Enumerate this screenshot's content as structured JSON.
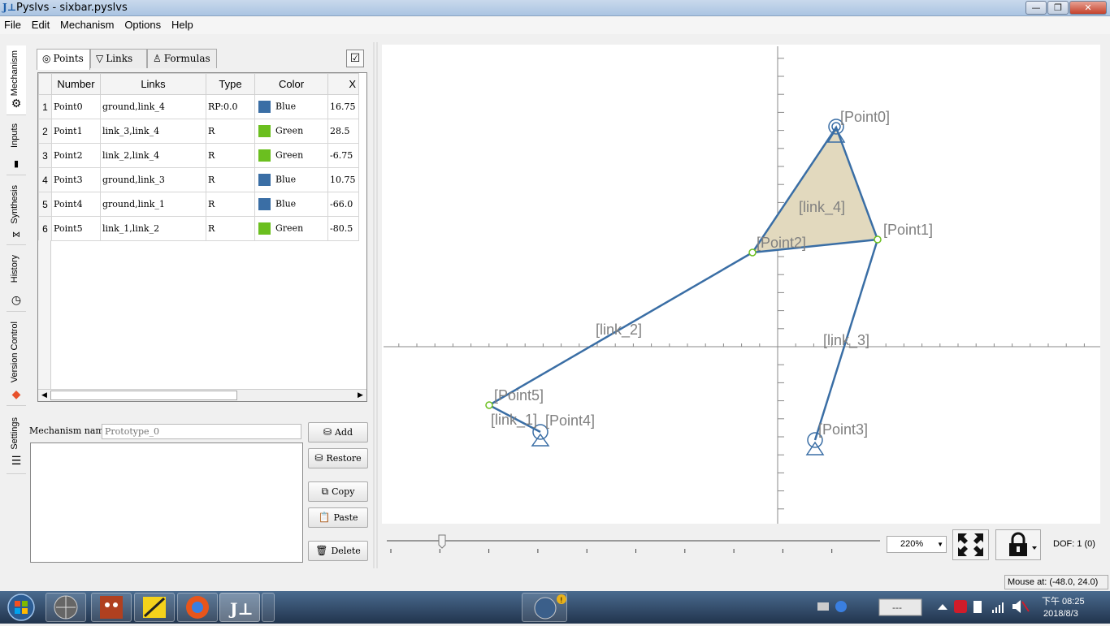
{
  "window": {
    "title": "Pyslvs - sixbar.pyslvs",
    "minimize": "—",
    "maximize": "❐",
    "close": "✕"
  },
  "menu": [
    "File",
    "Edit",
    "Mechanism",
    "Options",
    "Help"
  ],
  "sidetabs": [
    {
      "label": "Mechanism",
      "icon": "gear-icon"
    },
    {
      "label": "Inputs",
      "icon": "plug-icon"
    },
    {
      "label": "Synthesis",
      "icon": "synthesis-icon"
    },
    {
      "label": "History",
      "icon": "clock-icon"
    },
    {
      "label": "Version Control",
      "icon": "git-icon"
    },
    {
      "label": "Settings",
      "icon": "sliders-icon"
    }
  ],
  "panel_tabs": [
    {
      "label": "Points",
      "icon": "points-icon"
    },
    {
      "label": "Links",
      "icon": "links-icon"
    },
    {
      "label": "Formulas",
      "icon": "formulas-icon"
    }
  ],
  "table": {
    "headers": [
      "Number",
      "Links",
      "Type",
      "Color",
      "X"
    ],
    "rows": [
      {
        "index": "1",
        "number": "Point0",
        "links": "ground,link_4",
        "type": "RP:0.0",
        "color": "Blue",
        "color_hex": "#3a6ea5",
        "x": "16.75"
      },
      {
        "index": "2",
        "number": "Point1",
        "links": "link_3,link_4",
        "type": "R",
        "color": "Green",
        "color_hex": "#6bbf1f",
        "x": "28.5"
      },
      {
        "index": "3",
        "number": "Point2",
        "links": "link_2,link_4",
        "type": "R",
        "color": "Green",
        "color_hex": "#6bbf1f",
        "x": "-6.75"
      },
      {
        "index": "4",
        "number": "Point3",
        "links": "ground,link_3",
        "type": "R",
        "color": "Blue",
        "color_hex": "#3a6ea5",
        "x": "10.75"
      },
      {
        "index": "5",
        "number": "Point4",
        "links": "ground,link_1",
        "type": "R",
        "color": "Blue",
        "color_hex": "#3a6ea5",
        "x": "-66.0"
      },
      {
        "index": "6",
        "number": "Point5",
        "links": "link_1,link_2",
        "type": "R",
        "color": "Green",
        "color_hex": "#6bbf1f",
        "x": "-80.5"
      }
    ]
  },
  "mechanism": {
    "name_label": "Mechanism name:",
    "name_placeholder": "Prototype_0",
    "buttons": {
      "add": "Add",
      "restore": "Restore",
      "copy": "Copy",
      "paste": "Paste",
      "delete": "Delete"
    }
  },
  "canvas": {
    "point_labels": [
      "[Point0]",
      "[Point1]",
      "[Point2]",
      "[Point3]",
      "[Point4]",
      "[Point5]"
    ],
    "link_labels": [
      "[link_4]",
      "[link_2]",
      "[link_3]",
      "[link_1]"
    ],
    "link_color": "#3a6ea5",
    "fill_color": "#e2d9be",
    "joint_color": "#6bbf1f"
  },
  "zoom": {
    "value": "220%"
  },
  "dof": {
    "label": "DOF:  1 (0)"
  },
  "status": {
    "mouse": "Mouse at: (-48.0, 24.0)"
  },
  "taskbar": {
    "time": "下午 08:25",
    "date": "2018/8/3",
    "tray_box": "---"
  }
}
